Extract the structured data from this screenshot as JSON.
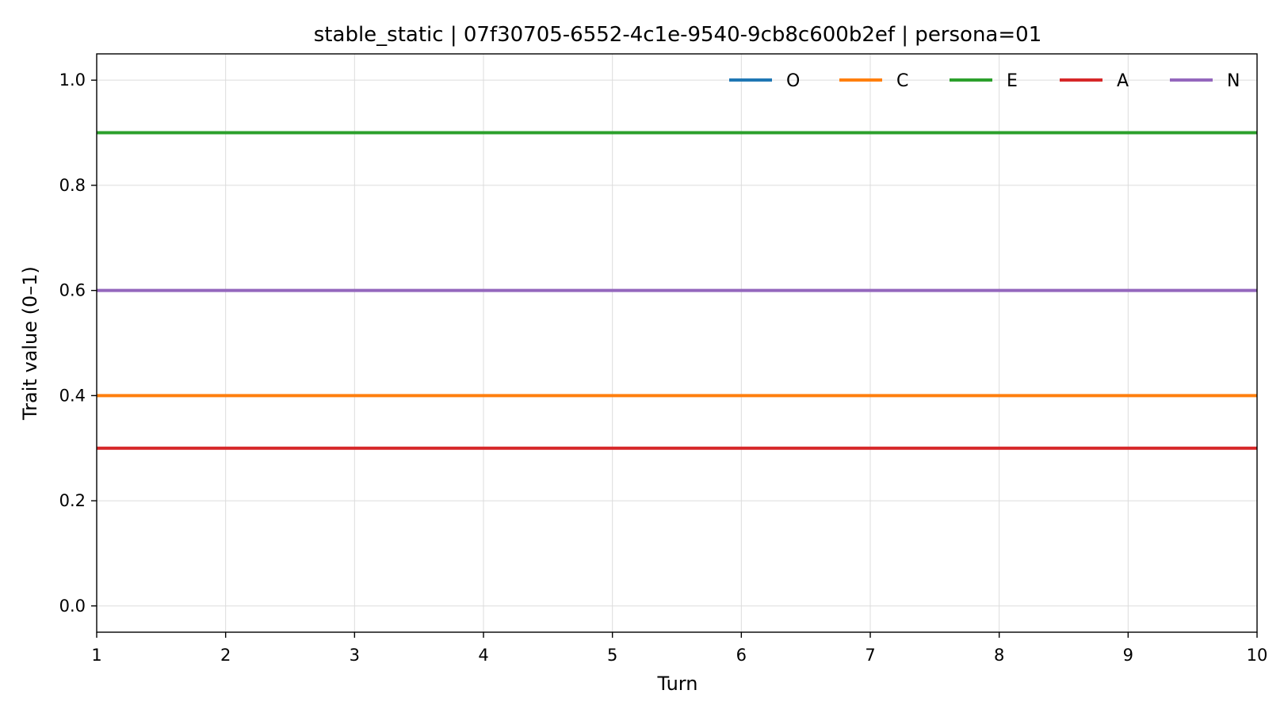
{
  "chart_data": {
    "type": "line",
    "title": "stable_static | 07f30705-6552-4c1e-9540-9cb8c600b2ef | persona=01",
    "xlabel": "Turn",
    "ylabel": "Trait value (0–1)",
    "x": [
      1,
      2,
      3,
      4,
      5,
      6,
      7,
      8,
      9,
      10
    ],
    "xlim": [
      1,
      10
    ],
    "ylim": [
      -0.05,
      1.05
    ],
    "xticks": [
      "1",
      "2",
      "3",
      "4",
      "5",
      "6",
      "7",
      "8",
      "9",
      "10"
    ],
    "yticks": [
      "0.0",
      "0.2",
      "0.4",
      "0.6",
      "0.8",
      "1.0"
    ],
    "grid": true,
    "legend_position": "top-right",
    "series": [
      {
        "name": "O",
        "color": "#1f77b4",
        "values": [
          0.9,
          0.9,
          0.9,
          0.9,
          0.9,
          0.9,
          0.9,
          0.9,
          0.9,
          0.9
        ]
      },
      {
        "name": "C",
        "color": "#ff7f0e",
        "values": [
          0.4,
          0.4,
          0.4,
          0.4,
          0.4,
          0.4,
          0.4,
          0.4,
          0.4,
          0.4
        ]
      },
      {
        "name": "E",
        "color": "#2ca02c",
        "values": [
          0.9,
          0.9,
          0.9,
          0.9,
          0.9,
          0.9,
          0.9,
          0.9,
          0.9,
          0.9
        ]
      },
      {
        "name": "A",
        "color": "#d62728",
        "values": [
          0.3,
          0.3,
          0.3,
          0.3,
          0.3,
          0.3,
          0.3,
          0.3,
          0.3,
          0.3
        ]
      },
      {
        "name": "N",
        "color": "#9467bd",
        "values": [
          0.6,
          0.6,
          0.6,
          0.6,
          0.6,
          0.6,
          0.6,
          0.6,
          0.6,
          0.6
        ]
      }
    ]
  }
}
